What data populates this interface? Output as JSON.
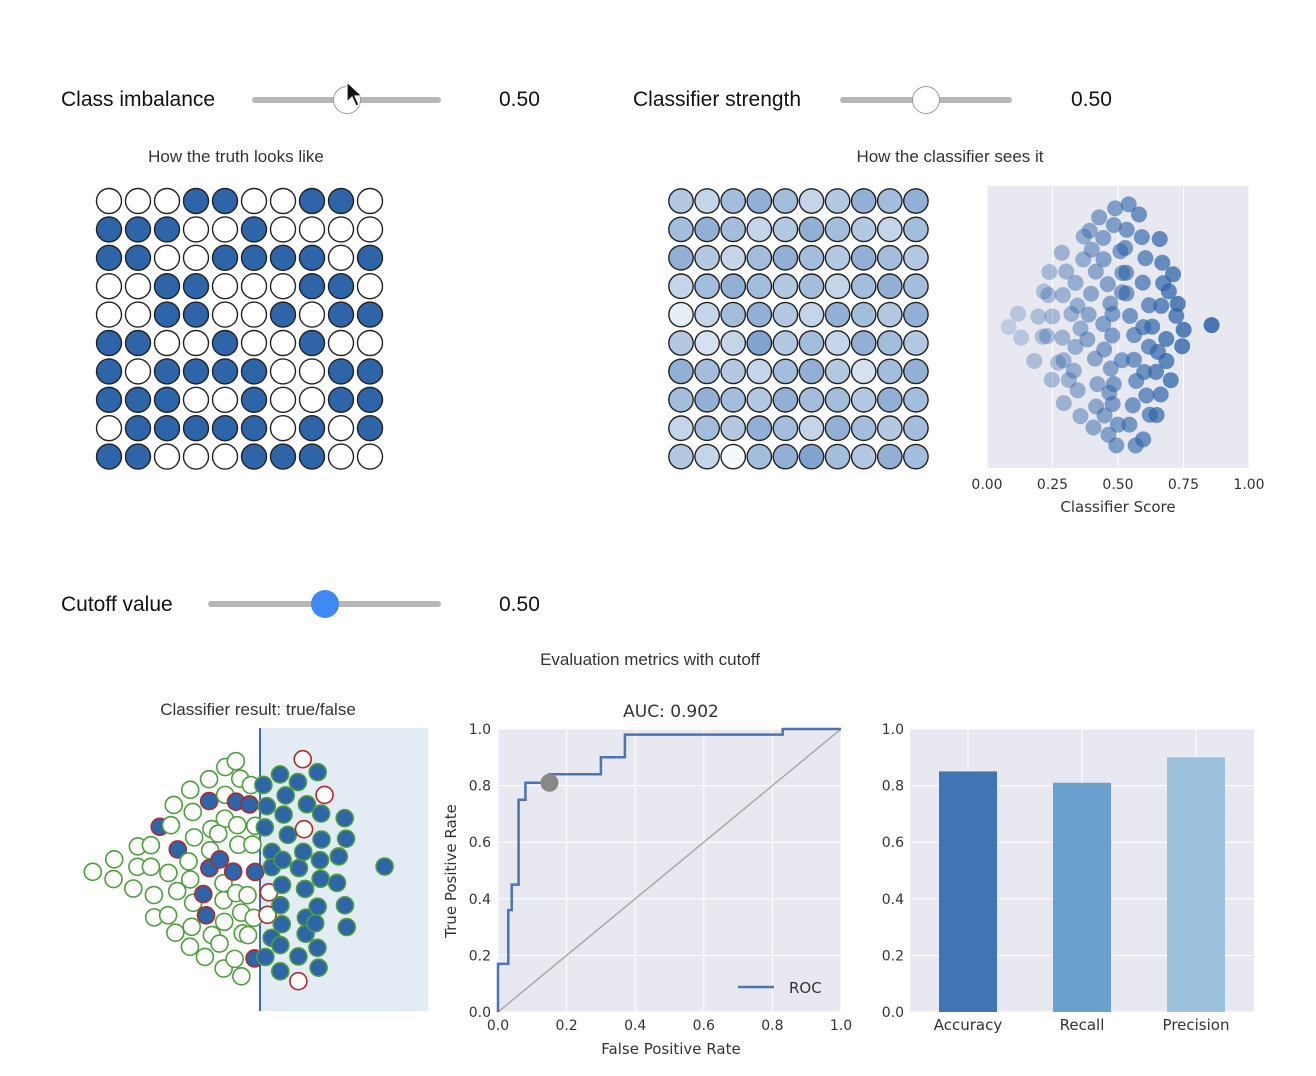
{
  "sliders": {
    "imbalance": {
      "label": "Class imbalance",
      "value": "0.50",
      "fraction": 0.5
    },
    "strength": {
      "label": "Classifier strength",
      "value": "0.50",
      "fraction": 0.5
    },
    "cutoff": {
      "label": "Cutoff value",
      "value": "0.50",
      "fraction": 0.5
    }
  },
  "titles": {
    "truth": "How the truth looks like",
    "classifier": "How the classifier sees it",
    "metrics_header": "Evaluation metrics with cutoff",
    "result": "Classifier result: true/false"
  },
  "colors": {
    "positive": "#2e64a8",
    "negative": "#ffffff",
    "pale": "#dde8f4",
    "green": "#4c9f3a",
    "red": "#b22a2a",
    "plot_bg": "#e8e8f0",
    "roc": "#4a74b4",
    "bar1": "#3f75b2",
    "bar2": "#6aa1cf",
    "bar3": "#9cc1dc",
    "slider_active": "#3d8bf2"
  },
  "truth_grid": [
    [
      0,
      0,
      0,
      1,
      1,
      0,
      0,
      1,
      1,
      0
    ],
    [
      1,
      1,
      1,
      0,
      0,
      1,
      0,
      0,
      0,
      0
    ],
    [
      1,
      1,
      0,
      0,
      1,
      1,
      1,
      1,
      0,
      1
    ],
    [
      0,
      0,
      1,
      1,
      0,
      0,
      0,
      1,
      1,
      0
    ],
    [
      0,
      0,
      1,
      1,
      0,
      0,
      1,
      0,
      1,
      1
    ],
    [
      1,
      1,
      0,
      0,
      1,
      0,
      0,
      1,
      0,
      0
    ],
    [
      1,
      0,
      1,
      1,
      1,
      1,
      0,
      0,
      1,
      1
    ],
    [
      1,
      1,
      1,
      0,
      0,
      1,
      0,
      0,
      1,
      1
    ],
    [
      0,
      1,
      1,
      1,
      1,
      1,
      0,
      1,
      0,
      1
    ],
    [
      1,
      1,
      0,
      0,
      0,
      1,
      1,
      1,
      0,
      0
    ]
  ],
  "classifier_grid": [
    [
      0.4,
      0.3,
      0.5,
      0.6,
      0.5,
      0.3,
      0.4,
      0.6,
      0.5,
      0.6
    ],
    [
      0.5,
      0.6,
      0.5,
      0.3,
      0.4,
      0.6,
      0.5,
      0.4,
      0.3,
      0.5
    ],
    [
      0.6,
      0.4,
      0.3,
      0.5,
      0.6,
      0.5,
      0.4,
      0.6,
      0.5,
      0.4
    ],
    [
      0.3,
      0.5,
      0.6,
      0.5,
      0.4,
      0.5,
      0.3,
      0.5,
      0.6,
      0.5
    ],
    [
      0.1,
      0.3,
      0.5,
      0.6,
      0.4,
      0.3,
      0.6,
      0.5,
      0.4,
      0.6
    ],
    [
      0.4,
      0.2,
      0.3,
      0.7,
      0.4,
      0.5,
      0.3,
      0.6,
      0.5,
      0.4
    ],
    [
      0.6,
      0.5,
      0.4,
      0.3,
      0.5,
      0.6,
      0.4,
      0.2,
      0.5,
      0.6
    ],
    [
      0.5,
      0.6,
      0.5,
      0.4,
      0.6,
      0.5,
      0.5,
      0.4,
      0.6,
      0.5
    ],
    [
      0.3,
      0.5,
      0.4,
      0.6,
      0.5,
      0.3,
      0.6,
      0.5,
      0.4,
      0.5
    ],
    [
      0.4,
      0.3,
      0.0,
      0.5,
      0.6,
      0.7,
      0.5,
      0.4,
      0.6,
      0.5
    ]
  ],
  "chart_data": [
    {
      "name": "classifier-score-swarm",
      "type": "scatter",
      "xlabel": "Classifier Score",
      "xlim": [
        0,
        1
      ],
      "xticks": [
        "0.00",
        "0.25",
        "0.50",
        "0.75",
        "1.00"
      ],
      "grid": true
    },
    {
      "name": "roc-curve",
      "type": "line",
      "title": "AUC: 0.902",
      "xlabel": "False Positive Rate",
      "ylabel": "True Positive Rate",
      "xlim": [
        0,
        1
      ],
      "ylim": [
        0,
        1
      ],
      "xticks": [
        "0.0",
        "0.2",
        "0.4",
        "0.6",
        "0.8",
        "1.0"
      ],
      "yticks": [
        "0.0",
        "0.2",
        "0.4",
        "0.6",
        "0.8",
        "1.0"
      ],
      "legend": "ROC",
      "legend_position": "bottom-right",
      "x": [
        0,
        0,
        0.03,
        0.03,
        0.04,
        0.04,
        0.06,
        0.06,
        0.08,
        0.08,
        0.15,
        0.15,
        0.3,
        0.3,
        0.37,
        0.37,
        0.83,
        0.83,
        1.0
      ],
      "y": [
        0,
        0.17,
        0.17,
        0.36,
        0.36,
        0.45,
        0.45,
        0.75,
        0.75,
        0.81,
        0.81,
        0.84,
        0.84,
        0.9,
        0.9,
        0.98,
        0.98,
        1.0,
        1.0
      ],
      "cutoff_point": {
        "x": 0.15,
        "y": 0.81
      },
      "diagonal": true
    },
    {
      "name": "metrics-bars",
      "type": "bar",
      "categories": [
        "Accuracy",
        "Recall",
        "Precision"
      ],
      "values": [
        0.85,
        0.81,
        0.9
      ],
      "ylim": [
        0,
        1
      ],
      "yticks": [
        "0.0",
        "0.2",
        "0.4",
        "0.6",
        "0.8",
        "1.0"
      ]
    }
  ]
}
